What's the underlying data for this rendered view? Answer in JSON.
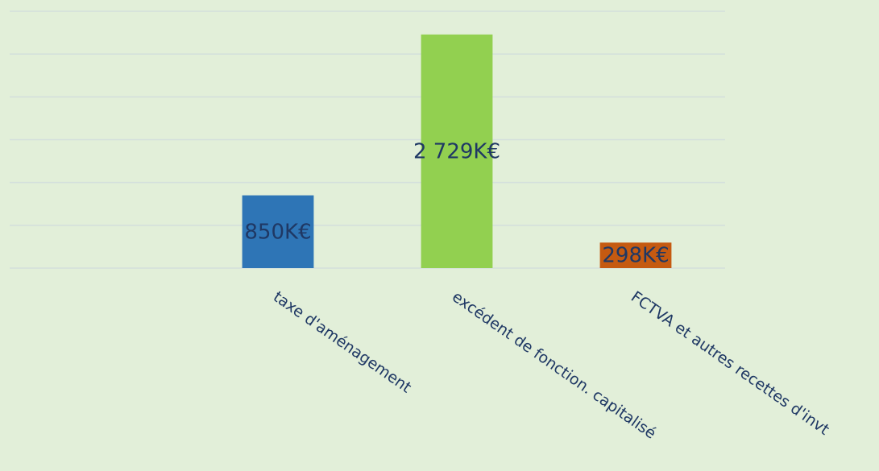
{
  "chart_data": {
    "type": "bar",
    "categories": [
      null,
      "taxe d'aménagement",
      "excédent de fonction. capitalisé",
      "FCTVA et autres recettes d'invt"
    ],
    "values": [
      null,
      850,
      2729,
      298
    ],
    "value_labels": [
      null,
      "850K€",
      "2 729K€",
      "298K€"
    ],
    "colors": [
      null,
      "#2e75b6",
      "#92d050",
      "#c55a11"
    ],
    "ylim": [
      0,
      3000
    ],
    "yticks": [
      0,
      500,
      1000,
      1500,
      2000,
      2500,
      3000
    ],
    "grid": true
  }
}
